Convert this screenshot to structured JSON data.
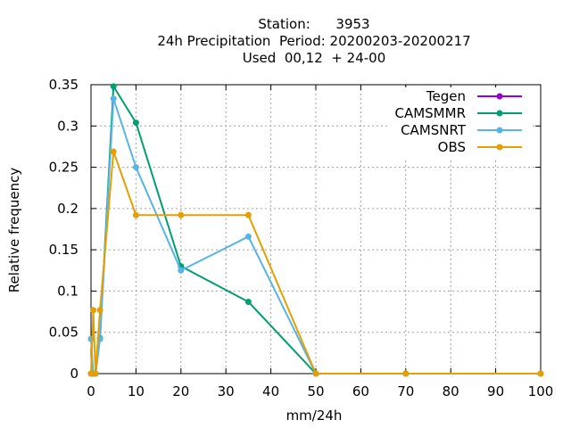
{
  "chart_data": {
    "type": "line",
    "title_lines": [
      "Station:      3953",
      "24h Precipitation  Period: 20200203-20200217",
      "Used  00,12  + 24-00"
    ],
    "xlabel": "mm/24h",
    "ylabel": "Relative frequency",
    "xlim": [
      0,
      100
    ],
    "ylim": [
      0,
      0.35
    ],
    "xticks": [
      0,
      10,
      20,
      30,
      40,
      50,
      60,
      70,
      80,
      90,
      100
    ],
    "yticks": [
      0,
      0.05,
      0.1,
      0.15,
      0.2,
      0.25,
      0.3,
      0.35
    ],
    "ytick_labels": [
      "0",
      "0.05",
      "0.1",
      "0.15",
      "0.2",
      "0.25",
      "0.3",
      "0.35"
    ],
    "grid": true,
    "legend_position": "top-right",
    "series": [
      {
        "name": "Tegen",
        "color": "#9400d3",
        "marker": "circle",
        "points": []
      },
      {
        "name": "CAMSMMR",
        "color": "#009e73",
        "marker": "circle",
        "points": [
          [
            0,
            0
          ],
          [
            0.5,
            0
          ],
          [
            1,
            0
          ],
          [
            2,
            0.043
          ],
          [
            5,
            0.348
          ],
          [
            10,
            0.304
          ],
          [
            20,
            0.13
          ],
          [
            35,
            0.087
          ],
          [
            50,
            0
          ],
          [
            70,
            0
          ],
          [
            100,
            0
          ]
        ]
      },
      {
        "name": "CAMSNRT",
        "color": "#56b4e9",
        "marker": "circle",
        "points": [
          [
            0,
            0.042
          ],
          [
            0.5,
            0
          ],
          [
            1,
            0
          ],
          [
            2,
            0.042
          ],
          [
            5,
            0.333
          ],
          [
            10,
            0.25
          ],
          [
            20,
            0.125
          ],
          [
            35,
            0.166
          ],
          [
            50,
            0
          ],
          [
            70,
            0
          ],
          [
            100,
            0
          ]
        ]
      },
      {
        "name": "OBS",
        "color": "#e69f00",
        "marker": "circle",
        "points": [
          [
            0,
            0
          ],
          [
            0.5,
            0.077
          ],
          [
            1,
            0
          ],
          [
            2,
            0.077
          ],
          [
            5,
            0.269
          ],
          [
            10,
            0.192
          ],
          [
            20,
            0.192
          ],
          [
            35,
            0.192
          ],
          [
            50,
            0
          ],
          [
            70,
            0
          ],
          [
            100,
            0
          ]
        ]
      }
    ]
  }
}
